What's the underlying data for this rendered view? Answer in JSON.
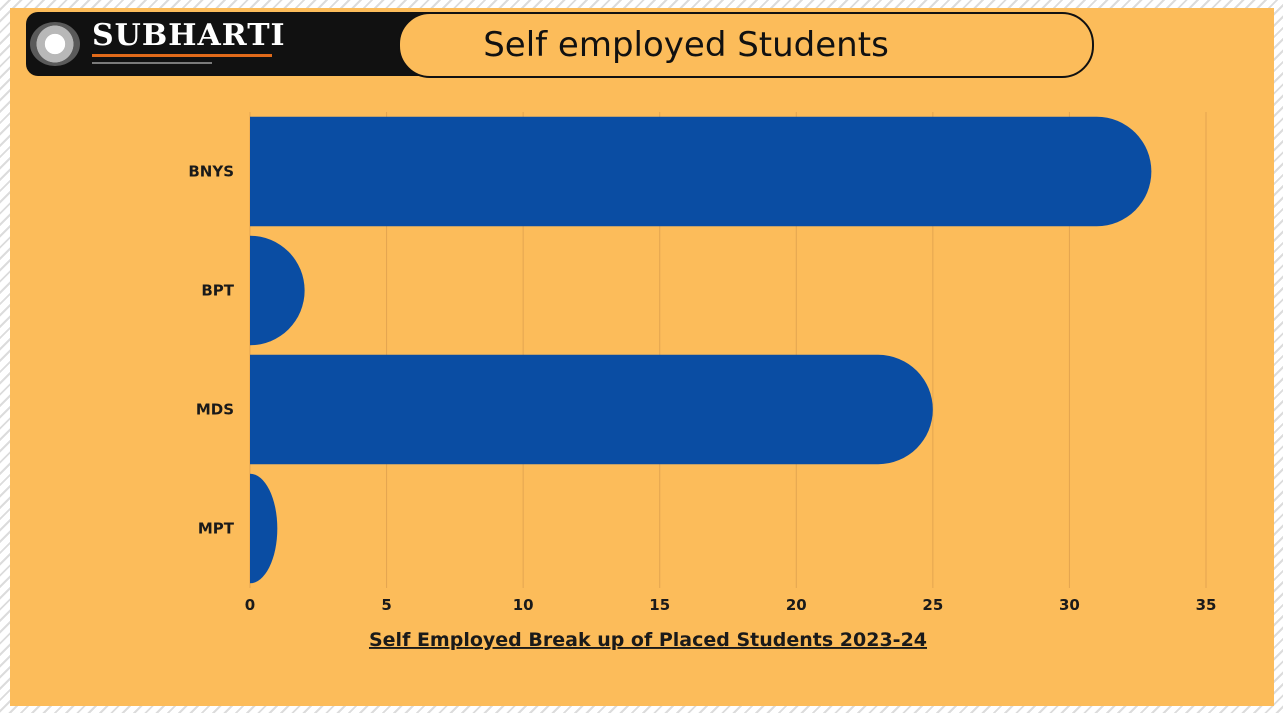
{
  "header": {
    "logo_text": "SUBHARTI",
    "title": "Self employed Students"
  },
  "colors": {
    "background": "#fcbc5a",
    "bar": "#0a4da3",
    "banner_dark": "#111111"
  },
  "chart_data": {
    "type": "bar",
    "orientation": "horizontal",
    "categories": [
      "BNYS",
      "BPT",
      "MDS",
      "MPT"
    ],
    "values": [
      33,
      2,
      25,
      1
    ],
    "xlabel": "Self Employed Break up of Placed Students 2023-24",
    "xlim": [
      0,
      35
    ],
    "xticks": [
      "0",
      "5",
      "10",
      "15",
      "20",
      "25",
      "30",
      "35"
    ],
    "grid": "vertical"
  }
}
